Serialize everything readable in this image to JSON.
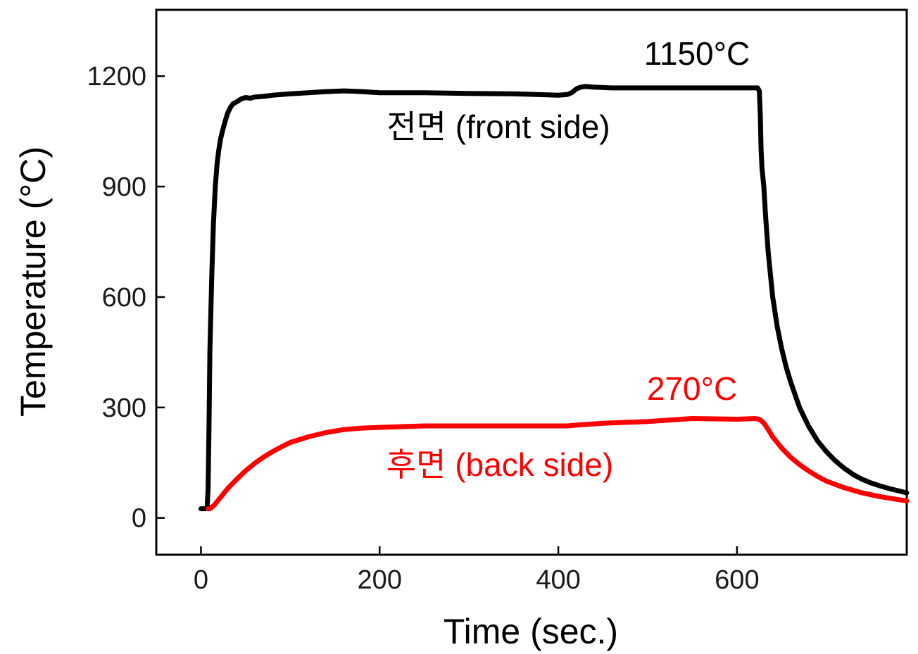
{
  "chart_data": {
    "type": "line",
    "xlabel": "Time (sec.)",
    "ylabel": "Temperature (°C)",
    "xlim": [
      -50,
      790
    ],
    "ylim": [
      -100,
      1380
    ],
    "xticks": [
      0,
      200,
      400,
      600
    ],
    "yticks": [
      0,
      300,
      600,
      900,
      1200
    ],
    "grid": false,
    "legend": "none",
    "series": [
      {
        "color": "#000000",
        "x": [
          0,
          5,
          7,
          8,
          9,
          10,
          12,
          14,
          16,
          18,
          20,
          22,
          25,
          28,
          30,
          33,
          36,
          40,
          45,
          50,
          55,
          60,
          70,
          80,
          90,
          100,
          120,
          140,
          160,
          180,
          200,
          250,
          300,
          350,
          400,
          410,
          415,
          420,
          425,
          430,
          440,
          460,
          500,
          550,
          600,
          620,
          623,
          625,
          626,
          627,
          628,
          630,
          632,
          635,
          640,
          645,
          650,
          655,
          660,
          670,
          680,
          690,
          700,
          710,
          720,
          730,
          740,
          750,
          760,
          770,
          780,
          790
        ],
        "y": [
          25,
          25,
          30,
          80,
          250,
          450,
          650,
          800,
          900,
          960,
          1000,
          1030,
          1060,
          1085,
          1100,
          1115,
          1125,
          1130,
          1138,
          1142,
          1140,
          1143,
          1145,
          1148,
          1150,
          1152,
          1155,
          1158,
          1160,
          1158,
          1155,
          1155,
          1153,
          1152,
          1148,
          1150,
          1155,
          1165,
          1170,
          1172,
          1170,
          1168,
          1168,
          1168,
          1168,
          1168,
          1168,
          1160,
          1100,
          1000,
          950,
          900,
          820,
          720,
          600,
          520,
          460,
          410,
          370,
          300,
          250,
          210,
          180,
          155,
          135,
          118,
          105,
          95,
          87,
          80,
          74,
          68
        ]
      },
      {
        "color": "#ff0000",
        "x": [
          8,
          10,
          15,
          20,
          25,
          30,
          40,
          50,
          60,
          70,
          80,
          90,
          100,
          120,
          140,
          160,
          180,
          200,
          250,
          300,
          350,
          400,
          410,
          420,
          450,
          500,
          550,
          600,
          620,
          625,
          630,
          635,
          640,
          650,
          660,
          670,
          680,
          690,
          700,
          720,
          740,
          760,
          780,
          790
        ],
        "y": [
          25,
          25,
          35,
          50,
          65,
          80,
          105,
          128,
          148,
          165,
          180,
          193,
          205,
          220,
          232,
          240,
          244,
          246,
          250,
          250,
          250,
          250,
          250,
          252,
          257,
          262,
          270,
          268,
          270,
          268,
          258,
          240,
          220,
          190,
          165,
          145,
          128,
          113,
          100,
          82,
          68,
          58,
          50,
          46
        ]
      }
    ],
    "annotations": [
      {
        "text": "1150°C",
        "color": "#000000"
      },
      {
        "text": "전면 (front side)",
        "color": "#000000"
      },
      {
        "text": "270°C",
        "color": "#ff0000"
      },
      {
        "text": "후면 (back side)",
        "color": "#ff0000"
      }
    ]
  }
}
